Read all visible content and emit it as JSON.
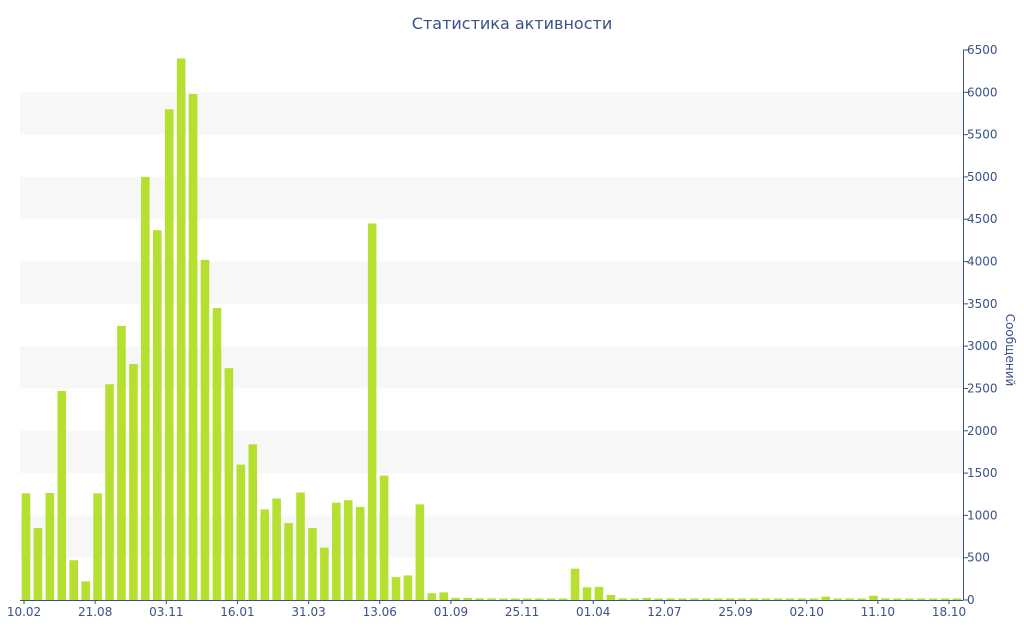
{
  "chart_data": {
    "type": "bar",
    "title": "Статистика активности",
    "ylabel": "Сообщений",
    "xlabel": "",
    "y_axis_side": "right",
    "ylim": [
      0,
      6500
    ],
    "yticks": [
      0,
      500,
      1000,
      1500,
      2000,
      2500,
      3000,
      3500,
      4000,
      4500,
      5000,
      5500,
      6000,
      6500
    ],
    "grid": "alternating horizontal bands",
    "bar_color": "#b5e030",
    "band_color": "#f7f7f7",
    "text_color": "#3a5286",
    "xtick_labels": [
      "10.02",
      "21.08",
      "03.11",
      "16.01",
      "31.03",
      "13.06",
      "01.09",
      "25.11",
      "01.04",
      "12.07",
      "25.09",
      "02.10",
      "11.10",
      "18.10"
    ],
    "values": [
      1260,
      850,
      1265,
      2470,
      470,
      220,
      1260,
      2550,
      3240,
      2790,
      5000,
      4370,
      5800,
      6400,
      5980,
      4020,
      3450,
      2740,
      1600,
      1840,
      1070,
      1200,
      910,
      1270,
      850,
      620,
      1150,
      1180,
      1100,
      4450,
      1470,
      270,
      290,
      1130,
      80,
      90,
      25,
      25,
      20,
      20,
      15,
      10,
      10,
      10,
      10,
      10,
      370,
      150,
      155,
      60,
      20,
      15,
      25,
      15,
      10,
      10,
      10,
      10,
      10,
      10,
      10,
      10,
      10,
      10,
      10,
      10,
      10,
      40,
      10,
      10,
      10,
      50,
      20,
      15,
      10,
      10,
      10,
      10,
      10
    ]
  }
}
